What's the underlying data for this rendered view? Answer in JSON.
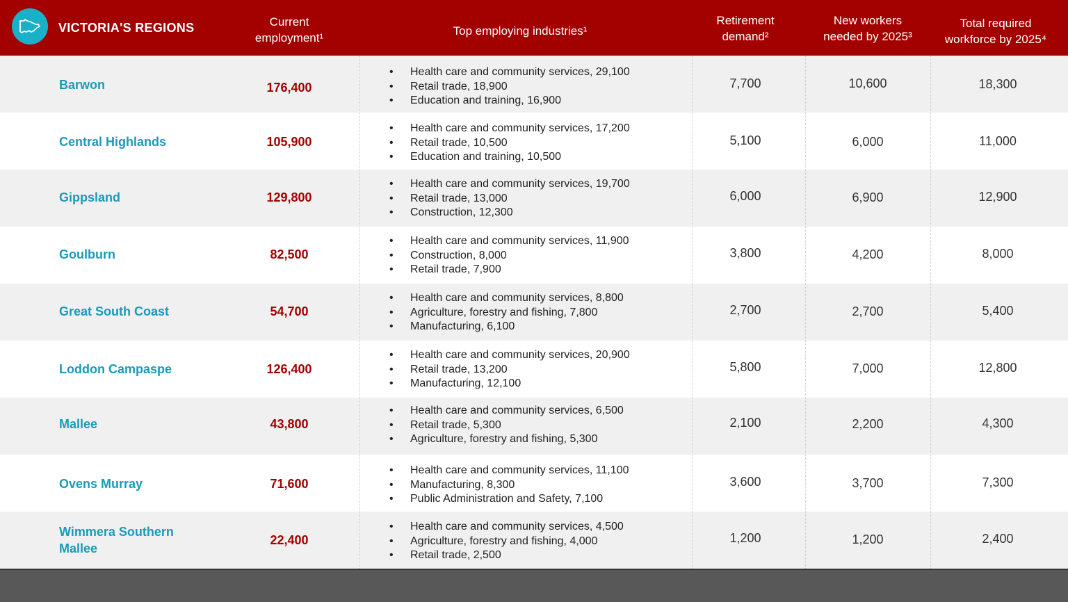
{
  "header": {
    "title": "VICTORIA'S REGIONS",
    "col_employment": [
      "Current",
      "employment¹"
    ],
    "col_industries": "Top employing industries¹",
    "col_retirement": [
      "Retirement",
      "demand²"
    ],
    "col_new_workers": [
      "New workers",
      "needed by 2025³"
    ],
    "col_total": [
      "Total required",
      "workforce by 2025⁴"
    ]
  },
  "rows": [
    {
      "region": "Barwon",
      "employment": "176,400",
      "industries": [
        "Health care and community services, 29,100",
        "Retail trade, 18,900",
        "Education and training, 16,900"
      ],
      "retirement": "7,700",
      "new_workers": "10,600",
      "total": "18,300"
    },
    {
      "region": "Central Highlands",
      "employment": "105,900",
      "industries": [
        "Health care and community services, 17,200",
        "Retail trade, 10,500",
        "Education and training, 10,500"
      ],
      "retirement": "5,100",
      "new_workers": "6,000",
      "total": "11,000"
    },
    {
      "region": "Gippsland",
      "employment": "129,800",
      "industries": [
        "Health care and community services, 19,700",
        "Retail trade, 13,000",
        "Construction, 12,300"
      ],
      "retirement": "6,000",
      "new_workers": "6,900",
      "total": "12,900"
    },
    {
      "region": "Goulburn",
      "employment": "82,500",
      "industries": [
        "Health care and community services, 11,900",
        "Construction, 8,000",
        "Retail trade, 7,900"
      ],
      "retirement": "3,800",
      "new_workers": "4,200",
      "total": "8,000"
    },
    {
      "region": "Great South Coast",
      "employment": "54,700",
      "industries": [
        "Health care and community services, 8,800",
        "Agriculture, forestry and fishing, 7,800",
        "Manufacturing, 6,100"
      ],
      "retirement": "2,700",
      "new_workers": "2,700",
      "total": "5,400"
    },
    {
      "region": "Loddon Campaspe",
      "employment": "126,400",
      "industries": [
        "Health care and community services, 20,900",
        "Retail trade, 13,200",
        "Manufacturing, 12,100"
      ],
      "retirement": "5,800",
      "new_workers": "7,000",
      "total": "12,800"
    },
    {
      "region": "Mallee",
      "employment": "43,800",
      "industries": [
        "Health care and community services, 6,500",
        "Retail trade, 5,300",
        "Agriculture, forestry and fishing, 5,300"
      ],
      "retirement": "2,100",
      "new_workers": "2,200",
      "total": "4,300"
    },
    {
      "region": "Ovens Murray",
      "employment": "71,600",
      "industries": [
        "Health care and community services, 11,100",
        "Manufacturing, 8,300",
        "Public Administration and Safety, 7,100"
      ],
      "retirement": "3,600",
      "new_workers": "3,700",
      "total": "7,300"
    },
    {
      "region": "Wimmera Southern Mallee",
      "employment": "22,400",
      "industries": [
        "Health care and community services, 4,500",
        "Agriculture, forestry and fishing, 4,000",
        "Retail trade, 2,500"
      ],
      "retirement": "1,200",
      "new_workers": "1,200",
      "total": "2,400"
    }
  ],
  "colors": {
    "header_bg": "#a30000",
    "region_text": "#1a9ab8",
    "employment_text": "#a30000",
    "logo_bg": "#1ab0c8",
    "footer_bg": "#585858"
  },
  "icons": {
    "logo": "victoria-map-icon"
  }
}
